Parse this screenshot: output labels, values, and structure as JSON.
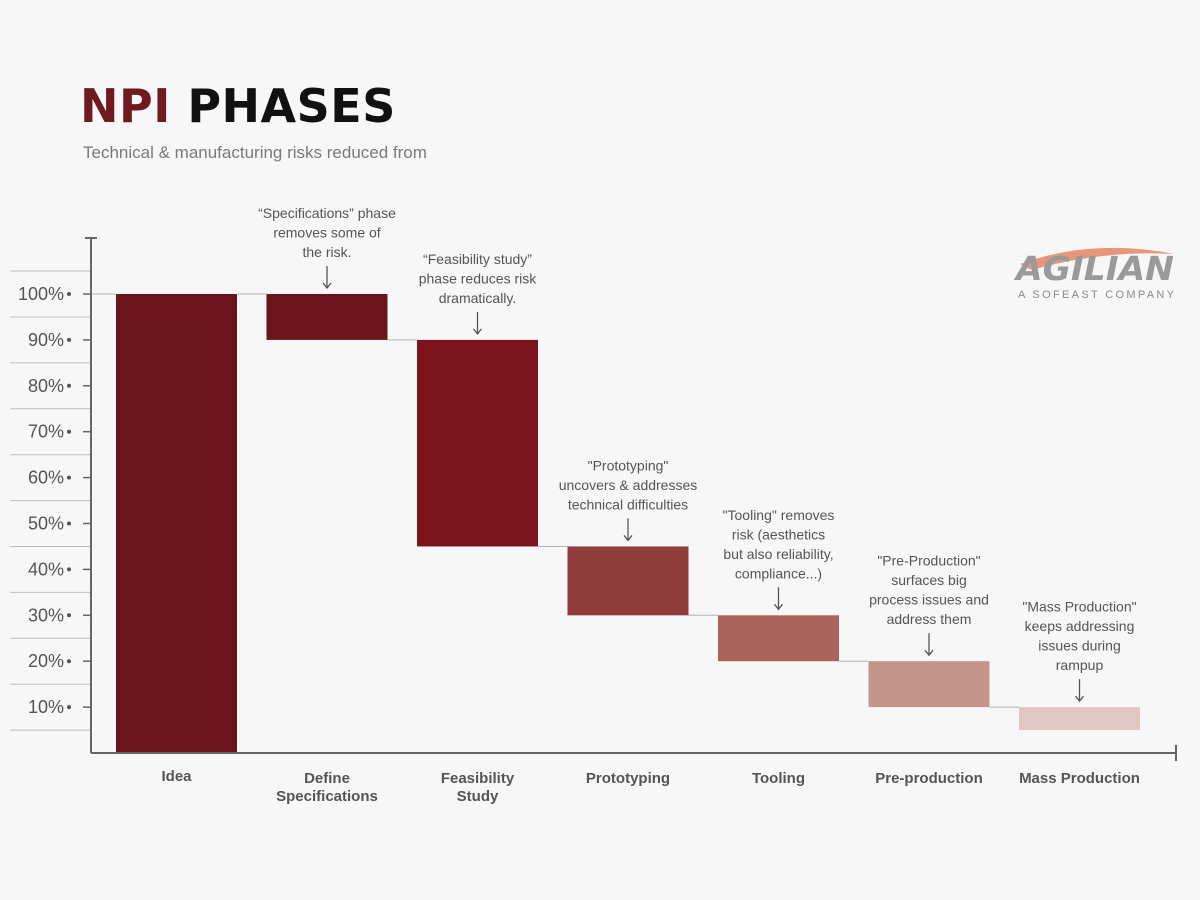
{
  "title_part1": "NPI",
  "title_part2": "PHASES",
  "subtitle": "Technical & manufacturing risks reduced from",
  "logo": {
    "brand": "AGILIAN",
    "tagline": "A SOFEAST COMPANY",
    "accent_color": "#e8967a",
    "brand_color": "#9a9a9a"
  },
  "chart_data": {
    "type": "bar",
    "subtype": "waterfall",
    "categories": [
      "Idea",
      "Define Specifications",
      "Feasibility Study",
      "Prototyping",
      "Tooling",
      "Pre-production",
      "Mass Production"
    ],
    "category_lines": [
      [
        "Idea"
      ],
      [
        "Define",
        "Specifications"
      ],
      [
        "Feasibility",
        "Study"
      ],
      [
        "Prototyping"
      ],
      [
        "Tooling"
      ],
      [
        "Pre-production"
      ],
      [
        "Mass Production"
      ]
    ],
    "bars": [
      {
        "category": "Idea",
        "from": 0,
        "to": 100,
        "color": "#6b141b"
      },
      {
        "category": "Define Specifications",
        "from": 100,
        "to": 90,
        "color": "#6b141b"
      },
      {
        "category": "Feasibility Study",
        "from": 90,
        "to": 45,
        "color": "#7b141c"
      },
      {
        "category": "Prototyping",
        "from": 45,
        "to": 30,
        "color": "#8f3c3a"
      },
      {
        "category": "Tooling",
        "from": 30,
        "to": 20,
        "color": "#a9655b"
      },
      {
        "category": "Pre-production",
        "from": 20,
        "to": 10,
        "color": "#c4958b"
      },
      {
        "category": "Mass Production",
        "from": 10,
        "to": 5,
        "color": "#e2c6c1"
      }
    ],
    "yticks": [
      10,
      20,
      30,
      40,
      50,
      60,
      70,
      80,
      90,
      100
    ],
    "ytick_labels": [
      "10%",
      "20%",
      "30%",
      "40%",
      "50%",
      "60%",
      "70%",
      "80%",
      "90%",
      "100%"
    ],
    "ylim": [
      0,
      100
    ],
    "annotations": [
      {
        "category": "Define Specifications",
        "lines": [
          "“Specifications” phase",
          "removes some of",
          "the risk."
        ]
      },
      {
        "category": "Feasibility Study",
        "lines": [
          "“Feasibility study”",
          "phase reduces risk",
          "dramatically."
        ]
      },
      {
        "category": "Prototyping",
        "lines": [
          "\"Prototyping\"",
          "uncovers & addresses",
          "technical difficulties"
        ]
      },
      {
        "category": "Tooling",
        "lines": [
          "\"Tooling\" removes",
          "risk (aesthetics",
          "but also reliability,",
          "compliance...)"
        ]
      },
      {
        "category": "Pre-production",
        "lines": [
          "\"Pre-Production\"",
          "surfaces big",
          "process issues and",
          "address them"
        ]
      },
      {
        "category": "Mass Production",
        "lines": [
          "\"Mass Production\"",
          "keeps addressing",
          "issues during",
          "rampup"
        ]
      }
    ],
    "grid": false
  }
}
